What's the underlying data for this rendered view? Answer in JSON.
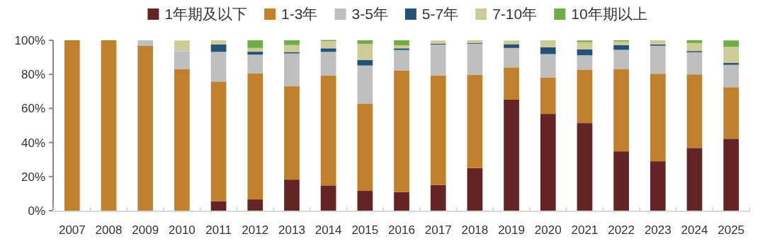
{
  "chart_data": {
    "type": "bar",
    "stacked": true,
    "legend": "top",
    "grid": false,
    "categories": [
      "2007",
      "2008",
      "2009",
      "2010",
      "2011",
      "2012",
      "2013",
      "2014",
      "2015",
      "2016",
      "2017",
      "2018",
      "2019",
      "2020",
      "2021",
      "2022",
      "2023",
      "2024",
      "2025"
    ],
    "ylim": [
      0,
      100
    ],
    "yticks": [
      {
        "value": 0,
        "label": "0%"
      },
      {
        "value": 20,
        "label": "20%"
      },
      {
        "value": 40,
        "label": "40%"
      },
      {
        "value": 60,
        "label": "60%"
      },
      {
        "value": 80,
        "label": "80%"
      },
      {
        "value": 100,
        "label": "100%"
      }
    ],
    "series": [
      {
        "name": "1年期及以下",
        "color": "#632523",
        "values": [
          0,
          0,
          0,
          0,
          5.6,
          6.6,
          18.2,
          14.8,
          11.6,
          10.9,
          15,
          25,
          65.2,
          56.8,
          51.4,
          34.8,
          29,
          36.8,
          42.2
        ]
      },
      {
        "name": "1-3年",
        "color": "#c0812f",
        "values": [
          100,
          100,
          96.7,
          83,
          70.2,
          74,
          54.8,
          64.6,
          51.3,
          71.4,
          64.3,
          54.8,
          18.9,
          21.4,
          31.4,
          48.4,
          51.4,
          43.2,
          30.3
        ]
      },
      {
        "name": "3-5年",
        "color": "#bfbfbf",
        "values": [
          0,
          0,
          3.3,
          10.6,
          17.4,
          11,
          19.3,
          13.8,
          22.3,
          12,
          18.2,
          18.2,
          11.4,
          13.7,
          8.4,
          11.2,
          16.4,
          13,
          13.1
        ]
      },
      {
        "name": "5-7年",
        "color": "#235178",
        "values": [
          0,
          0,
          0,
          0,
          4.3,
          1.7,
          0.8,
          2.1,
          3.2,
          1,
          0.5,
          0.5,
          2.2,
          4,
          3.4,
          2.8,
          0.7,
          0.7,
          1.1
        ]
      },
      {
        "name": "7-10年",
        "color": "#cdcc99",
        "values": [
          0,
          0,
          0,
          6.3,
          2.5,
          2.2,
          4.1,
          4.3,
          9.5,
          1.7,
          1.9,
          1.5,
          2.2,
          4.1,
          4.3,
          2.1,
          2.5,
          4.7,
          9.5
        ]
      },
      {
        "name": "10年期以上",
        "color": "#70ad47",
        "values": [
          0,
          0,
          0,
          0,
          0,
          4.5,
          2.8,
          0.6,
          2.1,
          3,
          0,
          0,
          0,
          0,
          1,
          0.7,
          0,
          1.7,
          3.7
        ]
      }
    ]
  }
}
